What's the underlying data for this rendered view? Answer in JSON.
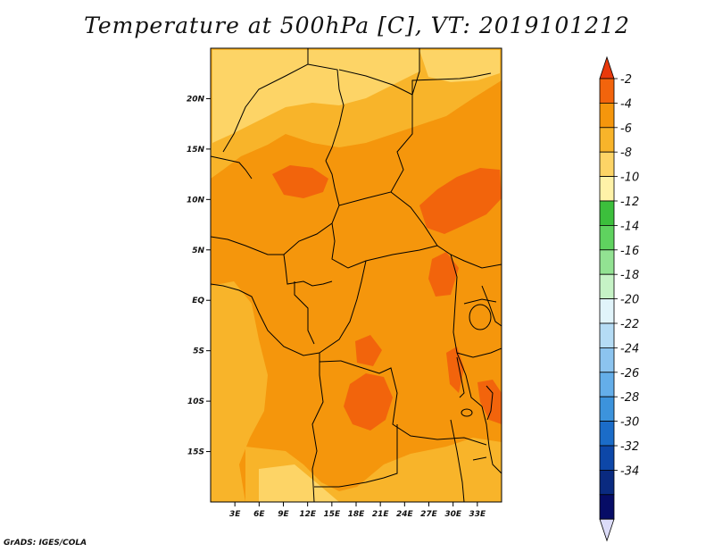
{
  "title": "Temperature at 500hPa [C], VT: 2019101212",
  "credit": "GrADS: IGES/COLA",
  "map": {
    "lon_range": [
      0,
      36
    ],
    "lat_range": [
      -20,
      25
    ],
    "lon_labels": [
      {
        "lon": 3,
        "text": "3E"
      },
      {
        "lon": 6,
        "text": "6E"
      },
      {
        "lon": 9,
        "text": "9E"
      },
      {
        "lon": 12,
        "text": "12E"
      },
      {
        "lon": 15,
        "text": "15E"
      },
      {
        "lon": 18,
        "text": "18E"
      },
      {
        "lon": 21,
        "text": "21E"
      },
      {
        "lon": 24,
        "text": "24E"
      },
      {
        "lon": 27,
        "text": "27E"
      },
      {
        "lon": 30,
        "text": "30E"
      },
      {
        "lon": 33,
        "text": "33E"
      }
    ],
    "lat_labels": [
      {
        "lat": 20,
        "text": "20N"
      },
      {
        "lat": 15,
        "text": "15N"
      },
      {
        "lat": 10,
        "text": "10N"
      },
      {
        "lat": 5,
        "text": "5N"
      },
      {
        "lat": 0,
        "text": "EQ"
      },
      {
        "lat": -5,
        "text": "5S"
      },
      {
        "lat": -10,
        "text": "10S"
      },
      {
        "lat": -15,
        "text": "15S"
      }
    ]
  },
  "colorbar": {
    "labels": [
      "-2",
      "-4",
      "-6",
      "-8",
      "-10",
      "-12",
      "-14",
      "-16",
      "-18",
      "-20",
      "-22",
      "-24",
      "-26",
      "-28",
      "-30",
      "-32",
      "-34"
    ],
    "colors": [
      "#e8390c",
      "#f2640c",
      "#f5960c",
      "#f8b42a",
      "#fdd466",
      "#fff2a8",
      "#3cbf3c",
      "#5fd25f",
      "#92e292",
      "#c6f3c6",
      "#e1f4fa",
      "#b5dcf5",
      "#8cc4ef",
      "#64aee9",
      "#3c93dc",
      "#1b6cc8",
      "#0d47a8",
      "#0a2a80",
      "#060c66",
      "#dcdcf8"
    ]
  },
  "fields": {
    "base_color": "#f5960c",
    "warm_color": "#f2640c",
    "cool_color": "#f8b42a",
    "coldest_color": "#fdd466"
  }
}
